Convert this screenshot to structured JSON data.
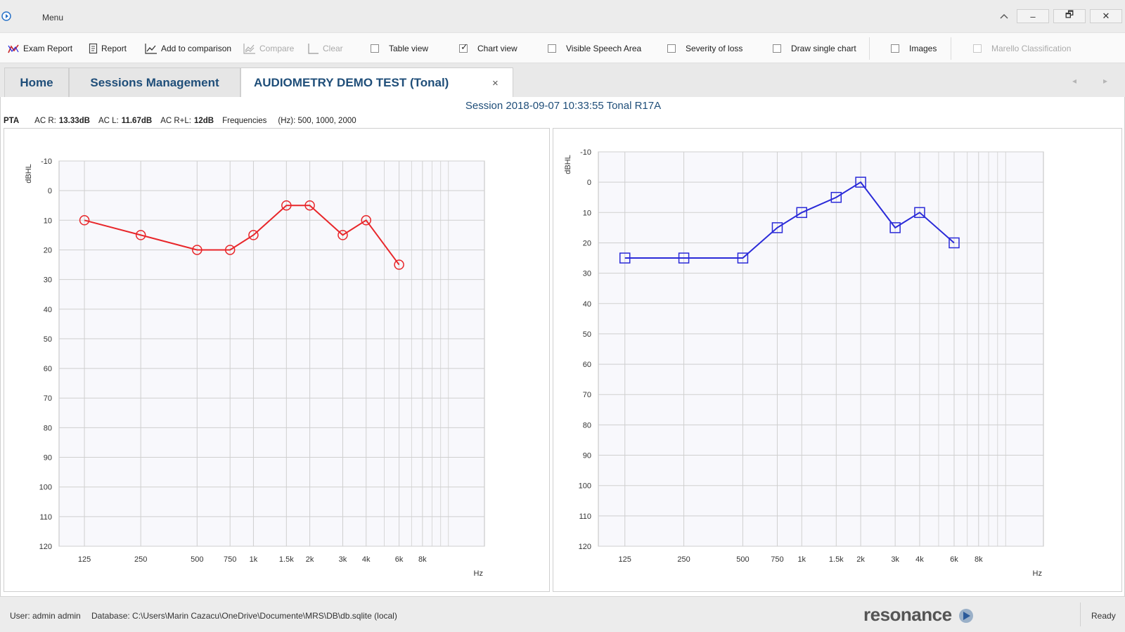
{
  "window": {
    "menu_label": "Menu",
    "minimize": "–",
    "restore": "🗗",
    "close": "✕"
  },
  "toolbar": {
    "exam_report": "Exam Report",
    "report": "Report",
    "add_to_comparison": "Add to comparison",
    "compare": "Compare",
    "clear": "Clear",
    "table_view": "Table view",
    "chart_view": "Chart view",
    "visible_speech_area": "Visible Speech Area",
    "severity_of_loss": "Severity of loss",
    "draw_single_chart": "Draw single chart",
    "images": "Images",
    "marello_classification": "Marello Classification",
    "checked": {
      "table_view": false,
      "chart_view": true,
      "visible_speech_area": false,
      "severity_of_loss": false,
      "draw_single_chart": false,
      "images": false,
      "marello_classification": false
    }
  },
  "tabs": [
    {
      "label": "Home",
      "active": false
    },
    {
      "label": "Sessions Management",
      "active": false
    },
    {
      "label": "AUDIOMETRY DEMO TEST (Tonal)",
      "active": true
    }
  ],
  "tab_close": "×",
  "nav": {
    "prev": "◂",
    "next": "▸"
  },
  "session": {
    "title": "Session 2018-09-07 10:33:55  Tonal R17A"
  },
  "pta": {
    "label": "PTA",
    "ac_r_label": "AC R:",
    "ac_r_value": "13.33dB",
    "ac_l_label": "AC L:",
    "ac_l_value": "11.67dB",
    "ac_rl_label": "AC R+L:",
    "ac_rl_value": "12dB",
    "frequencies_label": "Frequencies",
    "hz_label": "(Hz): 500, 1000, 2000"
  },
  "chart_data": [
    {
      "type": "line",
      "ylabel": "dBHL",
      "xlabel": "Hz",
      "x_scale": "log",
      "y_inverted": true,
      "ylim": [
        -10,
        120
      ],
      "yticks": [
        -10,
        0,
        10,
        20,
        30,
        40,
        50,
        60,
        70,
        80,
        90,
        100,
        110,
        120
      ],
      "xticks": [
        {
          "hz": 125,
          "label": "125"
        },
        {
          "hz": 250,
          "label": "250"
        },
        {
          "hz": 500,
          "label": "500"
        },
        {
          "hz": 750,
          "label": "750"
        },
        {
          "hz": 1000,
          "label": "1k"
        },
        {
          "hz": 1500,
          "label": "1.5k"
        },
        {
          "hz": 2000,
          "label": "2k"
        },
        {
          "hz": 3000,
          "label": "3k"
        },
        {
          "hz": 4000,
          "label": "4k"
        },
        {
          "hz": 6000,
          "label": "6k"
        },
        {
          "hz": 8000,
          "label": "8k"
        }
      ],
      "marker": "circle",
      "color": "#e8262a",
      "series": [
        {
          "x": [
            125,
            250,
            500,
            750,
            1000,
            1500,
            2000,
            3000,
            4000,
            6000
          ],
          "y": [
            10,
            15,
            20,
            20,
            15,
            5,
            5,
            15,
            10,
            25
          ]
        }
      ]
    },
    {
      "type": "line",
      "ylabel": "dBHL",
      "xlabel": "Hz",
      "x_scale": "log",
      "y_inverted": true,
      "ylim": [
        -10,
        120
      ],
      "yticks": [
        -10,
        0,
        10,
        20,
        30,
        40,
        50,
        60,
        70,
        80,
        90,
        100,
        110,
        120
      ],
      "xticks": [
        {
          "hz": 125,
          "label": "125"
        },
        {
          "hz": 250,
          "label": "250"
        },
        {
          "hz": 500,
          "label": "500"
        },
        {
          "hz": 750,
          "label": "750"
        },
        {
          "hz": 1000,
          "label": "1k"
        },
        {
          "hz": 1500,
          "label": "1.5k"
        },
        {
          "hz": 2000,
          "label": "2k"
        },
        {
          "hz": 3000,
          "label": "3k"
        },
        {
          "hz": 4000,
          "label": "4k"
        },
        {
          "hz": 6000,
          "label": "6k"
        },
        {
          "hz": 8000,
          "label": "8k"
        }
      ],
      "marker": "square",
      "color": "#2a2ad8",
      "series": [
        {
          "x": [
            125,
            250,
            500,
            750,
            1000,
            1500,
            2000,
            3000,
            4000,
            6000
          ],
          "y": [
            25,
            25,
            25,
            15,
            10,
            5,
            0,
            15,
            10,
            20
          ]
        }
      ]
    }
  ],
  "status": {
    "user": "User: admin admin",
    "database": "Database: C:\\Users\\Marin Cazacu\\OneDrive\\Documente\\MRS\\DB\\db.sqlite (local)",
    "logo": "resonance",
    "ready": "Ready"
  }
}
